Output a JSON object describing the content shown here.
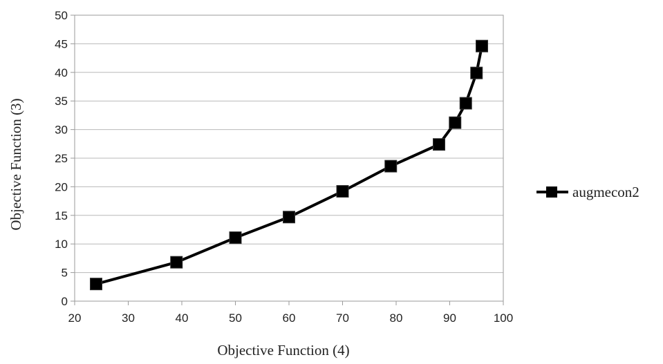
{
  "chart_data": {
    "type": "line",
    "title": "",
    "xlabel": "Objective  Function  (4)",
    "ylabel": "Objective  Function  (3)",
    "xlim": [
      20,
      100
    ],
    "ylim": [
      0,
      50
    ],
    "xticks": [
      20,
      30,
      40,
      50,
      60,
      70,
      80,
      90,
      100
    ],
    "yticks": [
      0,
      5,
      10,
      15,
      20,
      25,
      30,
      35,
      40,
      45,
      50
    ],
    "grid": "horizontal",
    "legend_position": "right",
    "series": [
      {
        "name": "augmecon2",
        "color": "#000000",
        "marker": "square",
        "points": [
          {
            "x": 24,
            "y": 3
          },
          {
            "x": 39,
            "y": 6.8
          },
          {
            "x": 50,
            "y": 11.1
          },
          {
            "x": 60,
            "y": 14.7
          },
          {
            "x": 70,
            "y": 19.2
          },
          {
            "x": 79,
            "y": 23.6
          },
          {
            "x": 88,
            "y": 27.4
          },
          {
            "x": 91,
            "y": 31.2
          },
          {
            "x": 93,
            "y": 34.6
          },
          {
            "x": 95,
            "y": 39.9
          },
          {
            "x": 96,
            "y": 44.6
          }
        ]
      }
    ]
  }
}
